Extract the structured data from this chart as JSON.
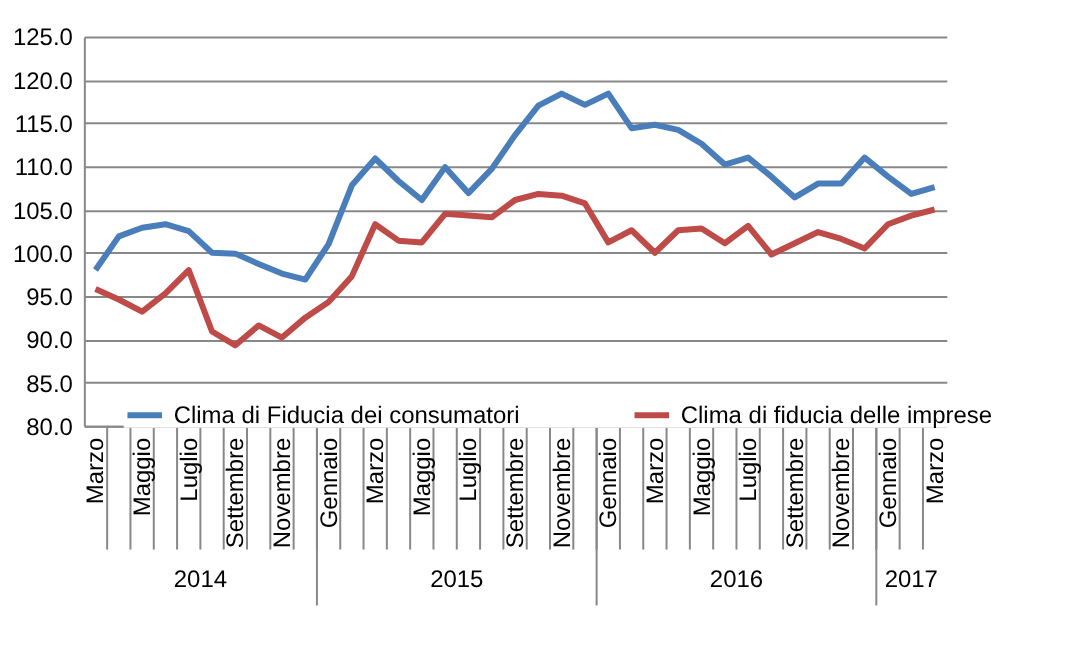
{
  "chart_data": {
    "type": "line",
    "categories": [
      "Marzo",
      null,
      "Maggio",
      null,
      "Luglio",
      null,
      "Settembre",
      null,
      "Novembre",
      null,
      "Gennaio",
      null,
      "Marzo",
      null,
      "Maggio",
      null,
      "Luglio",
      null,
      "Settembre",
      null,
      "Novembre",
      null,
      "Gennaio",
      null,
      "Marzo",
      null,
      "Maggio",
      null,
      "Luglio",
      null,
      "Settembre",
      null,
      "Novembre",
      null,
      "Gennaio",
      null,
      "Marzo"
    ],
    "series": [
      {
        "name": "Clima di Fiducia dei consumatori",
        "color": "#4a7ebb",
        "values": [
          98.0,
          101.9,
          102.9,
          103.3,
          102.5,
          100.0,
          99.9,
          98.7,
          97.6,
          96.9,
          101.0,
          107.8,
          110.9,
          108.3,
          106.1,
          109.9,
          106.9,
          109.7,
          113.6,
          117.0,
          118.4,
          117.1,
          118.4,
          114.4,
          114.8,
          114.2,
          112.6,
          110.2,
          111.0,
          108.8,
          106.4,
          108.0,
          108.0,
          111.0,
          108.8,
          106.8,
          107.6
        ]
      },
      {
        "name": "Clima di fiducia delle imprese",
        "color": "#be4b48",
        "values": [
          95.8,
          94.6,
          93.2,
          95.3,
          98.0,
          90.9,
          89.3,
          91.6,
          90.2,
          92.5,
          94.3,
          97.3,
          103.3,
          101.4,
          101.2,
          104.5,
          104.3,
          104.1,
          106.1,
          106.8,
          106.6,
          105.7,
          101.2,
          102.6,
          100.0,
          102.6,
          102.8,
          101.1,
          103.1,
          99.8,
          101.1,
          102.4,
          101.6,
          100.5,
          103.3,
          104.3,
          105.0
        ]
      }
    ],
    "ylim": [
      80,
      125
    ],
    "yticks": [
      {
        "value": 80,
        "label": "80.0"
      },
      {
        "value": 85,
        "label": "85.0"
      },
      {
        "value": 90,
        "label": "90.0"
      },
      {
        "value": 95,
        "label": "95.0"
      },
      {
        "value": 100,
        "label": "100.0"
      },
      {
        "value": 105,
        "label": "105.0"
      },
      {
        "value": 110,
        "label": "110.0"
      },
      {
        "value": 115,
        "label": "115.0"
      },
      {
        "value": 120,
        "label": "120.0"
      },
      {
        "value": 125,
        "label": "125.0"
      }
    ],
    "grid": "y",
    "legend": "bottom",
    "marker": "none",
    "line_style": "solid",
    "annotations": [
      "2014",
      "2015",
      "2016",
      "2017"
    ]
  }
}
